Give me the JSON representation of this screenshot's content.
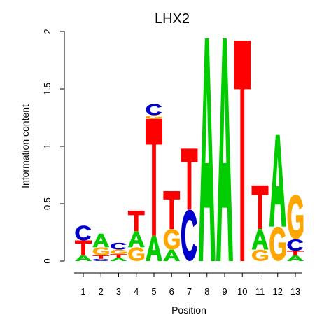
{
  "chart_data": {
    "type": "sequence-logo",
    "title": "LHX2",
    "xlabel": "Position",
    "ylabel": "Information content",
    "ylim": [
      0,
      2
    ],
    "y_ticks": [
      "0",
      "0.5",
      "1",
      "1.5",
      "2"
    ],
    "y_tick_values": [
      0,
      0.5,
      1,
      1.5,
      2
    ],
    "positions": [
      "1",
      "2",
      "3",
      "4",
      "5",
      "6",
      "7",
      "8",
      "9",
      "10",
      "11",
      "12",
      "13"
    ],
    "colors": {
      "A": "#00cc00",
      "C": "#0000cc",
      "G": "#ffa500",
      "T": "#ff0000"
    },
    "stacks": [
      [
        {
          "base": "A",
          "value": 0.05
        },
        {
          "base": "T",
          "value": 0.13
        },
        {
          "base": "C",
          "value": 0.13
        }
      ],
      [
        {
          "base": "C",
          "value": 0.02
        },
        {
          "base": "T",
          "value": 0.03
        },
        {
          "base": "G",
          "value": 0.07
        },
        {
          "base": "A",
          "value": 0.12
        }
      ],
      [
        {
          "base": "A",
          "value": 0.03
        },
        {
          "base": "T",
          "value": 0.03
        },
        {
          "base": "G",
          "value": 0.04
        },
        {
          "base": "C",
          "value": 0.06
        }
      ],
      [
        {
          "base": "G",
          "value": 0.12
        },
        {
          "base": "A",
          "value": 0.14
        },
        {
          "base": "T",
          "value": 0.18
        }
      ],
      [
        {
          "base": "A",
          "value": 0.22
        },
        {
          "base": "T",
          "value": 1.02
        },
        {
          "base": "G",
          "value": 0.03
        },
        {
          "base": "C",
          "value": 0.1
        }
      ],
      [
        {
          "base": "A",
          "value": 0.1
        },
        {
          "base": "G",
          "value": 0.18
        },
        {
          "base": "T",
          "value": 0.33
        }
      ],
      [
        {
          "base": "C",
          "value": 0.45
        },
        {
          "base": "T",
          "value": 0.53
        }
      ],
      [
        {
          "base": "A",
          "value": 1.94
        }
      ],
      [
        {
          "base": "A",
          "value": 1.94
        }
      ],
      [
        {
          "base": "T",
          "value": 1.92
        }
      ],
      [
        {
          "base": "G",
          "value": 0.1
        },
        {
          "base": "A",
          "value": 0.18
        },
        {
          "base": "T",
          "value": 0.38
        }
      ],
      [
        {
          "base": "G",
          "value": 0.3
        },
        {
          "base": "A",
          "value": 0.8
        }
      ],
      [
        {
          "base": "A",
          "value": 0.05
        },
        {
          "base": "T",
          "value": 0.04
        },
        {
          "base": "C",
          "value": 0.1
        },
        {
          "base": "G",
          "value": 0.39
        }
      ]
    ]
  }
}
